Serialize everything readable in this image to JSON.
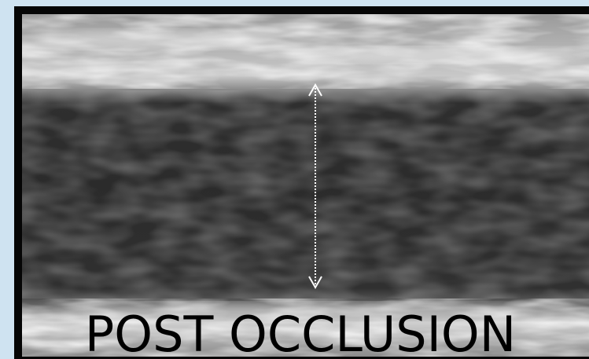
{
  "image": {
    "caption": "POST OCCLUSION"
  }
}
